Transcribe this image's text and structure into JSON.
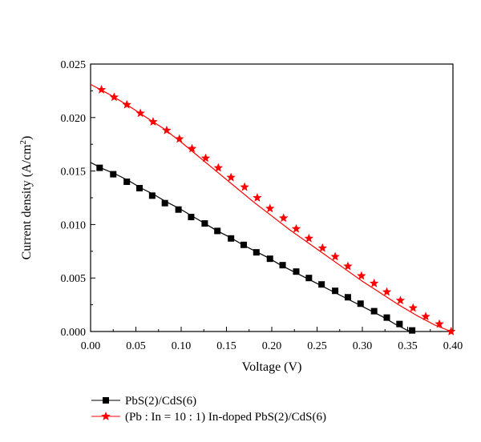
{
  "chart_data": {
    "type": "line",
    "xlabel": "Voltage (V)",
    "ylabel_main": "Current density (A/cm",
    "ylabel_sup": "2",
    "ylabel_close": ")",
    "xlim": [
      0.0,
      0.4
    ],
    "ylim": [
      0.0,
      0.025
    ],
    "xticks": [
      "0.00",
      "0.05",
      "0.10",
      "0.15",
      "0.20",
      "0.25",
      "0.30",
      "0.35",
      "0.40"
    ],
    "yticks": [
      "0.000",
      "0.005",
      "0.010",
      "0.015",
      "0.020",
      "0.025"
    ],
    "grid": false,
    "legend_position": "bottom-left",
    "series": [
      {
        "name": "PbS(2)/CdS(6)",
        "marker": "square",
        "color": "#000000",
        "x": [
          0.0,
          0.014,
          0.028,
          0.042,
          0.056,
          0.07,
          0.084,
          0.098,
          0.112,
          0.126,
          0.14,
          0.154,
          0.168,
          0.182,
          0.196,
          0.21,
          0.224,
          0.238,
          0.252,
          0.266,
          0.28,
          0.294,
          0.308,
          0.322,
          0.336,
          0.35,
          0.355
        ],
        "y": [
          0.0158,
          0.0152,
          0.0147,
          0.0141,
          0.0134,
          0.0128,
          0.0121,
          0.0115,
          0.0108,
          0.0101,
          0.0094,
          0.0088,
          0.0081,
          0.0075,
          0.0069,
          0.0062,
          0.0056,
          0.005,
          0.0044,
          0.0038,
          0.0032,
          0.0026,
          0.002,
          0.0014,
          0.0007,
          0.0001,
          0.0
        ],
        "markers_x": [
          0.01,
          0.025,
          0.04,
          0.054,
          0.068,
          0.082,
          0.097,
          0.111,
          0.126,
          0.14,
          0.155,
          0.169,
          0.183,
          0.198,
          0.212,
          0.227,
          0.241,
          0.255,
          0.27,
          0.284,
          0.298,
          0.313,
          0.327,
          0.341,
          0.355
        ],
        "markers_y": [
          0.0153,
          0.0147,
          0.014,
          0.0134,
          0.0127,
          0.012,
          0.0114,
          0.0107,
          0.0101,
          0.0094,
          0.0087,
          0.0081,
          0.0074,
          0.0068,
          0.0062,
          0.0056,
          0.005,
          0.0044,
          0.0038,
          0.0032,
          0.0026,
          0.0019,
          0.0013,
          0.0007,
          0.0001
        ]
      },
      {
        "name": "(Pb : In = 10 : 1) In-doped PbS(2)/CdS(6)",
        "marker": "star",
        "color": "#ff0000",
        "x": [
          0.0,
          0.02,
          0.04,
          0.06,
          0.08,
          0.1,
          0.12,
          0.14,
          0.16,
          0.18,
          0.2,
          0.22,
          0.24,
          0.26,
          0.28,
          0.3,
          0.32,
          0.34,
          0.36,
          0.38,
          0.398
        ],
        "y": [
          0.0231,
          0.0222,
          0.0212,
          0.0201,
          0.019,
          0.0177,
          0.0163,
          0.0149,
          0.0135,
          0.0121,
          0.0108,
          0.0095,
          0.0083,
          0.0071,
          0.0059,
          0.0047,
          0.0036,
          0.0025,
          0.0015,
          0.0006,
          0.0
        ],
        "markers_x": [
          0.012,
          0.026,
          0.04,
          0.055,
          0.069,
          0.084,
          0.098,
          0.112,
          0.127,
          0.141,
          0.155,
          0.17,
          0.184,
          0.198,
          0.213,
          0.227,
          0.241,
          0.256,
          0.27,
          0.284,
          0.299,
          0.313,
          0.327,
          0.342,
          0.356,
          0.37,
          0.385,
          0.398
        ],
        "markers_y": [
          0.0226,
          0.0219,
          0.0212,
          0.0204,
          0.0196,
          0.0188,
          0.018,
          0.0171,
          0.0162,
          0.0153,
          0.0144,
          0.0135,
          0.0125,
          0.0115,
          0.0106,
          0.0096,
          0.0087,
          0.0078,
          0.007,
          0.0061,
          0.0052,
          0.0045,
          0.0037,
          0.0029,
          0.0022,
          0.0014,
          0.0007,
          0.0
        ]
      }
    ]
  }
}
